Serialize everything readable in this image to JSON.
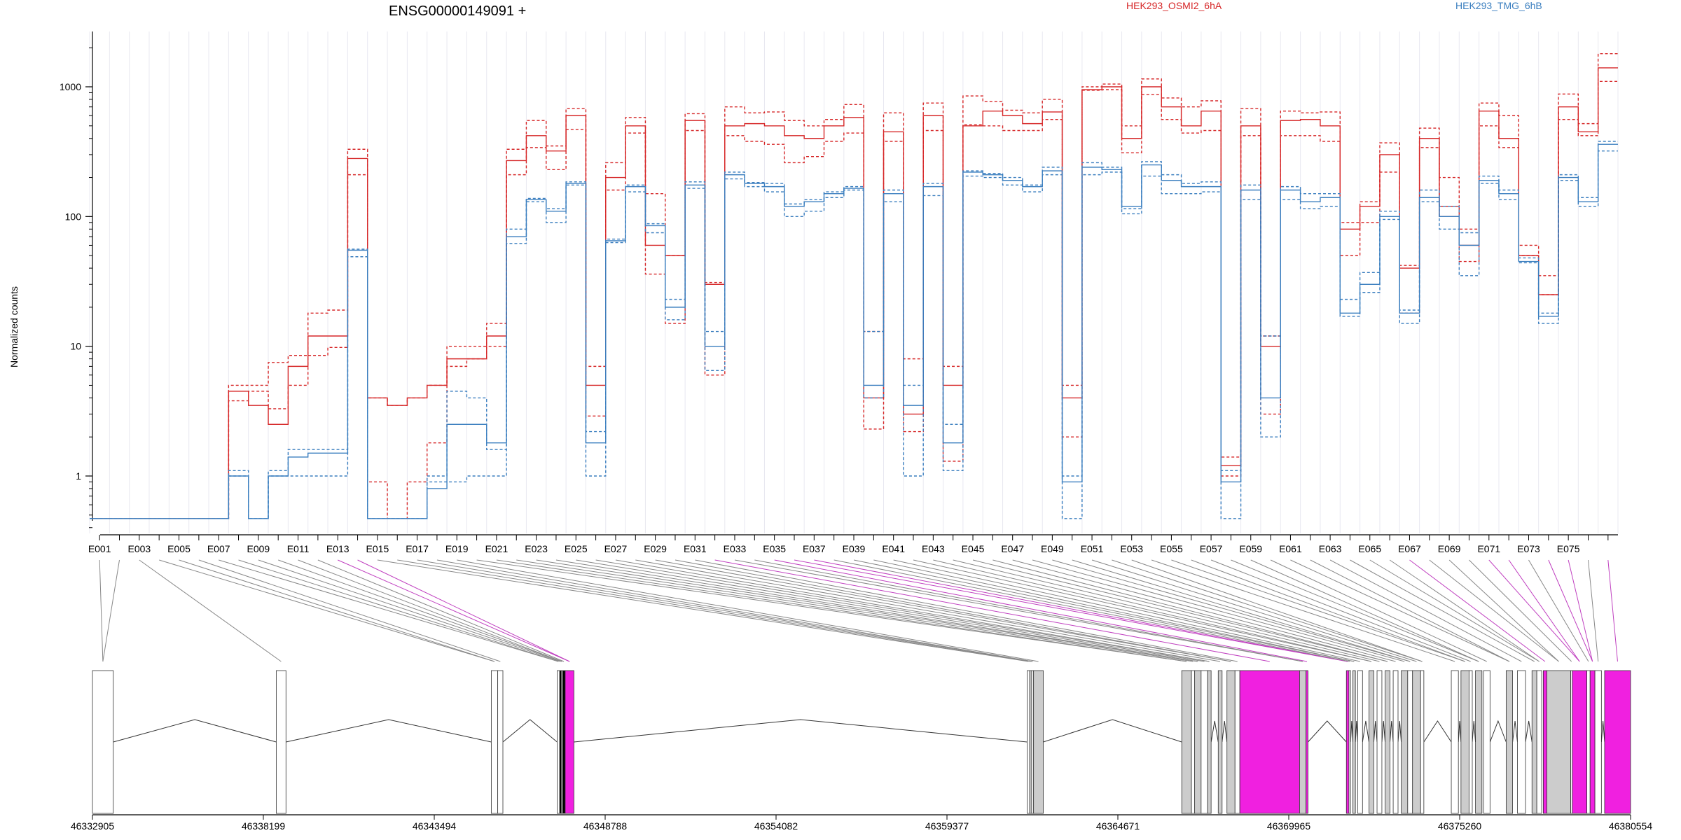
{
  "chart_data": {
    "type": "line",
    "title": "ENSG00000149091 +",
    "ylabel": "Normalized counts",
    "xlabel": "",
    "y_scale": "log",
    "ylim": [
      0.4,
      2500
    ],
    "y_ticks": [
      "1",
      "10",
      "100",
      "1000"
    ],
    "legend": [
      {
        "name": "HEK293_OSMI2_6hA",
        "color": "#d62728"
      },
      {
        "name": "HEK293_TMG_6hB",
        "color": "#3a7ebf"
      }
    ],
    "exon_labels": [
      "E001",
      "E003",
      "E005",
      "E007",
      "E009",
      "E011",
      "E013",
      "E015",
      "E017",
      "E019",
      "E021",
      "E023",
      "E025",
      "E027",
      "E029",
      "E031",
      "E033",
      "E035",
      "E037",
      "E039",
      "E041",
      "E043",
      "E045",
      "E047",
      "E049",
      "E051",
      "E053",
      "E055",
      "E057",
      "E059",
      "E061",
      "E063",
      "E065",
      "E067",
      "E069",
      "E071",
      "E073",
      "E075"
    ],
    "genomic_ticks": [
      "46332905",
      "46338199",
      "46343494",
      "46348788",
      "46354082",
      "46359377",
      "46364671",
      "46369965",
      "46375260",
      "46380554"
    ],
    "genomic_range": [
      46332905,
      46380554
    ],
    "osmi_medium": [
      0.47,
      0.47,
      0.47,
      0.47,
      0.47,
      0.47,
      0.47,
      4.5,
      3.5,
      2.5,
      7,
      12,
      12,
      280,
      4,
      3.5,
      4,
      5,
      8,
      8,
      12,
      270,
      420,
      320,
      600,
      5,
      200,
      500,
      60,
      50,
      550,
      30,
      500,
      520,
      500,
      420,
      400,
      500,
      580,
      4,
      450,
      3,
      600,
      5,
      500,
      650,
      600,
      520,
      640,
      4,
      950,
      1000,
      400,
      1000,
      700,
      500,
      650,
      1.2,
      500,
      10,
      550,
      560,
      500,
      80,
      120,
      300,
      40,
      400,
      100,
      60,
      650,
      400,
      50,
      25,
      700,
      450,
      1400
    ],
    "osmi_high": [
      0.47,
      0.47,
      0.47,
      0.47,
      0.47,
      0.47,
      0.47,
      5,
      5,
      7.5,
      8.5,
      18,
      19,
      330,
      4,
      3.5,
      4,
      5,
      10,
      10,
      15,
      330,
      550,
      350,
      680,
      7,
      260,
      580,
      150,
      50,
      620,
      31,
      700,
      630,
      640,
      550,
      500,
      560,
      730,
      13,
      630,
      8,
      750,
      7,
      850,
      770,
      660,
      630,
      800,
      5,
      1000,
      1050,
      500,
      1150,
      820,
      700,
      780,
      1.4,
      680,
      12,
      650,
      630,
      640,
      90,
      130,
      370,
      42,
      480,
      200,
      80,
      750,
      600,
      60,
      35,
      880,
      520,
      1800
    ],
    "osmi_low": [
      0.47,
      0.47,
      0.47,
      0.47,
      0.47,
      0.47,
      0.47,
      3.8,
      4.5,
      3.3,
      5,
      8.5,
      9.8,
      210,
      0.9,
      0.47,
      0.9,
      1.8,
      7,
      8,
      10,
      210,
      340,
      230,
      470,
      2.9,
      160,
      440,
      36,
      15,
      460,
      6,
      420,
      380,
      360,
      260,
      290,
      380,
      440,
      2.3,
      380,
      2.2,
      460,
      1.3,
      510,
      500,
      460,
      460,
      560,
      2,
      940,
      950,
      310,
      870,
      560,
      440,
      460,
      1,
      420,
      3,
      420,
      420,
      380,
      50,
      90,
      220,
      18,
      340,
      120,
      45,
      500,
      340,
      50,
      25,
      560,
      420,
      1100
    ],
    "tmg_medium": [
      0.47,
      0.47,
      0.47,
      0.47,
      0.47,
      0.47,
      0.47,
      1,
      0.47,
      1,
      1.4,
      1.5,
      1.5,
      55,
      0.47,
      0.47,
      0.47,
      0.8,
      2.5,
      2.5,
      1.8,
      70,
      135,
      110,
      180,
      1.8,
      65,
      170,
      85,
      20,
      175,
      10,
      210,
      180,
      170,
      120,
      130,
      150,
      165,
      5,
      150,
      3.5,
      170,
      1.8,
      220,
      210,
      190,
      170,
      225,
      0.9,
      240,
      230,
      120,
      250,
      190,
      170,
      170,
      0.9,
      160,
      4,
      160,
      130,
      140,
      18,
      30,
      100,
      18,
      140,
      100,
      60,
      190,
      150,
      45,
      17,
      200,
      130,
      360
    ],
    "tmg_high": [
      0.47,
      0.47,
      0.47,
      0.47,
      0.47,
      0.47,
      0.47,
      1.1,
      0.47,
      1.1,
      1.6,
      1.6,
      1.6,
      56,
      0.47,
      0.47,
      0.47,
      1,
      4.5,
      4,
      1.6,
      80,
      138,
      115,
      185,
      2.2,
      67,
      175,
      88,
      23,
      185,
      13,
      220,
      183,
      180,
      125,
      135,
      155,
      170,
      13,
      160,
      5,
      180,
      2.5,
      225,
      215,
      200,
      175,
      240,
      1,
      260,
      240,
      115,
      265,
      210,
      180,
      185,
      1.1,
      175,
      12,
      170,
      150,
      150,
      23,
      37,
      110,
      19,
      160,
      120,
      75,
      205,
      160,
      48,
      18,
      210,
      140,
      380
    ],
    "tmg_low": [
      0.47,
      0.47,
      0.47,
      0.47,
      0.47,
      0.47,
      0.47,
      1,
      0.47,
      1,
      1,
      1,
      1,
      49,
      0.47,
      0.47,
      0.47,
      0.9,
      0.9,
      1,
      1,
      62,
      130,
      90,
      175,
      1,
      63,
      155,
      75,
      16,
      165,
      6.5,
      195,
      170,
      155,
      100,
      110,
      140,
      160,
      4,
      130,
      1,
      145,
      1.1,
      205,
      200,
      175,
      155,
      210,
      0.47,
      210,
      220,
      105,
      205,
      150,
      150,
      155,
      0.47,
      135,
      2,
      135,
      115,
      120,
      17,
      26,
      95,
      15,
      130,
      80,
      35,
      180,
      135,
      44,
      15,
      190,
      120,
      320
    ]
  },
  "gene_model": {
    "exons": [
      {
        "s": 46332905,
        "e": 46333550,
        "c": "w"
      },
      {
        "s": 46338600,
        "e": 46338900,
        "c": "w"
      },
      {
        "s": 46345260,
        "e": 46345460,
        "c": "w"
      },
      {
        "s": 46345460,
        "e": 46345620,
        "c": "w"
      },
      {
        "s": 46347300,
        "e": 46347380,
        "c": "w"
      },
      {
        "s": 46347380,
        "e": 46347430,
        "c": "k"
      },
      {
        "s": 46347430,
        "e": 46347470,
        "c": "w"
      },
      {
        "s": 46347470,
        "e": 46347550,
        "c": "k"
      },
      {
        "s": 46347550,
        "e": 46347820,
        "c": "m"
      },
      {
        "s": 46361860,
        "e": 46361940,
        "c": "w"
      },
      {
        "s": 46361940,
        "e": 46362000,
        "c": "g"
      },
      {
        "s": 46362000,
        "e": 46362060,
        "c": "w"
      },
      {
        "s": 46362060,
        "e": 46362360,
        "c": "g"
      },
      {
        "s": 46366650,
        "e": 46366950,
        "c": "g"
      },
      {
        "s": 46366950,
        "e": 46367050,
        "c": "w"
      },
      {
        "s": 46367050,
        "e": 46367250,
        "c": "g"
      },
      {
        "s": 46367250,
        "e": 46367450,
        "c": "w"
      },
      {
        "s": 46367450,
        "e": 46367560,
        "c": "g"
      },
      {
        "s": 46367780,
        "e": 46367900,
        "c": "g"
      },
      {
        "s": 46368050,
        "e": 46368300,
        "c": "g"
      },
      {
        "s": 46368300,
        "e": 46368450,
        "c": "w"
      },
      {
        "s": 46368450,
        "e": 46370300,
        "c": "m"
      },
      {
        "s": 46370300,
        "e": 46370500,
        "c": "g"
      },
      {
        "s": 46370500,
        "e": 46370560,
        "c": "m"
      },
      {
        "s": 46371750,
        "e": 46371830,
        "c": "m"
      },
      {
        "s": 46371830,
        "e": 46371880,
        "c": "w"
      },
      {
        "s": 46371950,
        "e": 46372030,
        "c": "g"
      },
      {
        "s": 46372100,
        "e": 46372250,
        "c": "w"
      },
      {
        "s": 46372450,
        "e": 46372600,
        "c": "g"
      },
      {
        "s": 46372700,
        "e": 46372850,
        "c": "w"
      },
      {
        "s": 46372950,
        "e": 46373100,
        "c": "g"
      },
      {
        "s": 46373200,
        "e": 46373350,
        "c": "w"
      },
      {
        "s": 46373450,
        "e": 46373650,
        "c": "g"
      },
      {
        "s": 46373650,
        "e": 46373800,
        "c": "w"
      },
      {
        "s": 46373800,
        "e": 46374050,
        "c": "g"
      },
      {
        "s": 46374050,
        "e": 46374150,
        "c": "w"
      },
      {
        "s": 46375000,
        "e": 46375220,
        "c": "w"
      },
      {
        "s": 46375300,
        "e": 46375550,
        "c": "g"
      },
      {
        "s": 46375550,
        "e": 46375650,
        "c": "w"
      },
      {
        "s": 46375750,
        "e": 46375950,
        "c": "g"
      },
      {
        "s": 46376000,
        "e": 46376200,
        "c": "w"
      },
      {
        "s": 46376700,
        "e": 46376900,
        "c": "g"
      },
      {
        "s": 46377050,
        "e": 46377300,
        "c": "w"
      },
      {
        "s": 46377500,
        "e": 46377650,
        "c": "g"
      },
      {
        "s": 46377650,
        "e": 46377800,
        "c": "w"
      },
      {
        "s": 46377850,
        "e": 46377960,
        "c": "m"
      },
      {
        "s": 46377960,
        "e": 46378700,
        "c": "g"
      },
      {
        "s": 46378700,
        "e": 46378750,
        "c": "w"
      },
      {
        "s": 46378750,
        "e": 46379200,
        "c": "m"
      },
      {
        "s": 46379200,
        "e": 46379300,
        "c": "w"
      },
      {
        "s": 46379300,
        "e": 46379450,
        "c": "m"
      },
      {
        "s": 46379450,
        "e": 46379650,
        "c": "w"
      },
      {
        "s": 46379750,
        "e": 46380554,
        "c": "m"
      }
    ],
    "colors": {
      "w": "#ffffff",
      "g": "#cccccc",
      "m": "#f020e0",
      "k": "#000000"
    }
  }
}
